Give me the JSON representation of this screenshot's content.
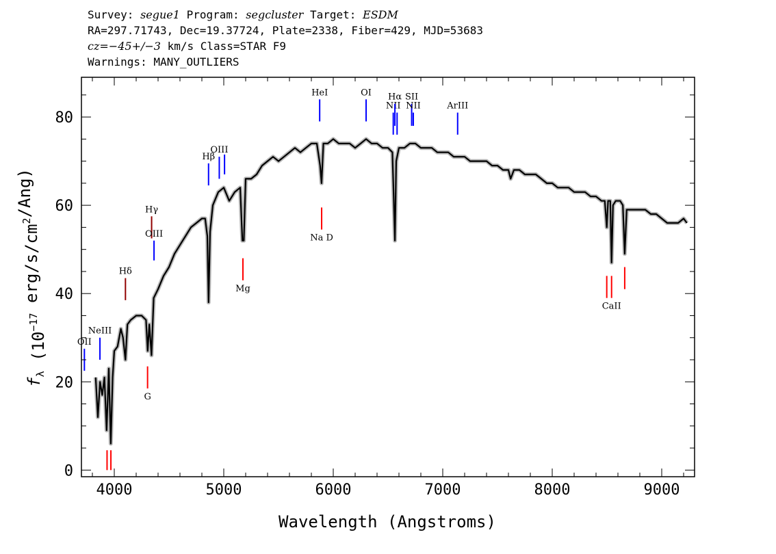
{
  "header": {
    "line1": {
      "survey_label": "Survey: ",
      "survey": "segue1",
      "program_label": " Program: ",
      "program": "segcluster",
      "target_label": " Target: ",
      "target": "ESDM"
    },
    "line2": "RA=297.71743, Dec=19.37724, Plate=2338, Fiber=429, MJD=53683",
    "line3": {
      "cz": "cz=−45+/−3",
      "rest": " km/s Class=STAR F9"
    },
    "line4": "Warnings: MANY_OUTLIERS"
  },
  "chart_data": {
    "type": "line",
    "title": "",
    "xlabel": "Wavelength (Angstroms)",
    "ylabel": "fλ (10⁻¹⁷ erg/s/cm²/Ang)",
    "xlim": [
      3700,
      9300
    ],
    "ylim": [
      -1.5,
      89
    ],
    "xticks": [
      4000,
      5000,
      6000,
      7000,
      8000,
      9000
    ],
    "yticks": [
      0,
      20,
      40,
      60,
      80
    ],
    "grid": false,
    "series": [
      {
        "color": "#000000",
        "points": [
          [
            3830,
            21
          ],
          [
            3850,
            12
          ],
          [
            3870,
            20
          ],
          [
            3890,
            17
          ],
          [
            3910,
            21
          ],
          [
            3930,
            9
          ],
          [
            3950,
            23
          ],
          [
            3968,
            6
          ],
          [
            3985,
            21
          ],
          [
            4000,
            27
          ],
          [
            4030,
            28
          ],
          [
            4060,
            32
          ],
          [
            4080,
            30
          ],
          [
            4102,
            25
          ],
          [
            4120,
            33
          ],
          [
            4150,
            34
          ],
          [
            4200,
            35
          ],
          [
            4250,
            35
          ],
          [
            4290,
            34
          ],
          [
            4305,
            27
          ],
          [
            4320,
            33
          ],
          [
            4340,
            26
          ],
          [
            4360,
            39
          ],
          [
            4400,
            41
          ],
          [
            4450,
            44
          ],
          [
            4500,
            46
          ],
          [
            4550,
            49
          ],
          [
            4600,
            51
          ],
          [
            4650,
            53
          ],
          [
            4700,
            55
          ],
          [
            4750,
            56
          ],
          [
            4800,
            57
          ],
          [
            4830,
            57
          ],
          [
            4850,
            53
          ],
          [
            4861,
            38
          ],
          [
            4875,
            54
          ],
          [
            4900,
            60
          ],
          [
            4950,
            63
          ],
          [
            5000,
            64
          ],
          [
            5050,
            61
          ],
          [
            5100,
            63
          ],
          [
            5150,
            64
          ],
          [
            5170,
            52
          ],
          [
            5183,
            52
          ],
          [
            5200,
            66
          ],
          [
            5250,
            66
          ],
          [
            5300,
            67
          ],
          [
            5350,
            69
          ],
          [
            5400,
            70
          ],
          [
            5450,
            71
          ],
          [
            5500,
            70
          ],
          [
            5550,
            71
          ],
          [
            5600,
            72
          ],
          [
            5650,
            73
          ],
          [
            5700,
            72
          ],
          [
            5750,
            73
          ],
          [
            5800,
            74
          ],
          [
            5850,
            74
          ],
          [
            5880,
            69
          ],
          [
            5893,
            65
          ],
          [
            5910,
            74
          ],
          [
            5950,
            74
          ],
          [
            6000,
            75
          ],
          [
            6050,
            74
          ],
          [
            6100,
            74
          ],
          [
            6150,
            74
          ],
          [
            6200,
            73
          ],
          [
            6250,
            74
          ],
          [
            6300,
            75
          ],
          [
            6350,
            74
          ],
          [
            6400,
            74
          ],
          [
            6450,
            73
          ],
          [
            6500,
            73
          ],
          [
            6540,
            72
          ],
          [
            6552,
            62
          ],
          [
            6563,
            52
          ],
          [
            6575,
            70
          ],
          [
            6600,
            73
          ],
          [
            6650,
            73
          ],
          [
            6700,
            74
          ],
          [
            6750,
            74
          ],
          [
            6800,
            73
          ],
          [
            6850,
            73
          ],
          [
            6900,
            73
          ],
          [
            6950,
            72
          ],
          [
            7000,
            72
          ],
          [
            7050,
            72
          ],
          [
            7100,
            71
          ],
          [
            7150,
            71
          ],
          [
            7200,
            71
          ],
          [
            7250,
            70
          ],
          [
            7300,
            70
          ],
          [
            7350,
            70
          ],
          [
            7400,
            70
          ],
          [
            7450,
            69
          ],
          [
            7500,
            69
          ],
          [
            7550,
            68
          ],
          [
            7600,
            68
          ],
          [
            7620,
            66
          ],
          [
            7650,
            68
          ],
          [
            7700,
            68
          ],
          [
            7750,
            67
          ],
          [
            7800,
            67
          ],
          [
            7850,
            67
          ],
          [
            7900,
            66
          ],
          [
            7950,
            65
          ],
          [
            8000,
            65
          ],
          [
            8050,
            64
          ],
          [
            8100,
            64
          ],
          [
            8150,
            64
          ],
          [
            8200,
            63
          ],
          [
            8250,
            63
          ],
          [
            8300,
            63
          ],
          [
            8350,
            62
          ],
          [
            8400,
            62
          ],
          [
            8450,
            61
          ],
          [
            8480,
            61
          ],
          [
            8498,
            55
          ],
          [
            8510,
            61
          ],
          [
            8530,
            61
          ],
          [
            8542,
            47
          ],
          [
            8555,
            60
          ],
          [
            8580,
            61
          ],
          [
            8620,
            61
          ],
          [
            8645,
            60
          ],
          [
            8662,
            49
          ],
          [
            8680,
            59
          ],
          [
            8720,
            59
          ],
          [
            8760,
            59
          ],
          [
            8800,
            59
          ],
          [
            8850,
            59
          ],
          [
            8900,
            58
          ],
          [
            8950,
            58
          ],
          [
            9000,
            57
          ],
          [
            9050,
            56
          ],
          [
            9100,
            56
          ],
          [
            9150,
            56
          ],
          [
            9200,
            57
          ],
          [
            9230,
            56
          ]
        ]
      }
    ],
    "emission_lines": [
      {
        "name": "OII",
        "wavelength": 3727,
        "color": "#0000ff",
        "y_bottom": 22.5,
        "y_top": 27.5
      },
      {
        "name": "NeIII",
        "wavelength": 3869,
        "color": "#0000ff",
        "y_bottom": 25,
        "y_top": 30
      },
      {
        "name": "Hδ",
        "wavelength": 4102,
        "color": "#900000",
        "y_bottom": 38.5,
        "y_top": 43.5
      },
      {
        "name": "Hγ",
        "wavelength": 4341,
        "color": "#900000",
        "y_bottom": 52.5,
        "y_top": 57.5
      },
      {
        "name": "OIII",
        "wavelength": 4363,
        "color": "#0000ff",
        "y_bottom": 47.5,
        "y_top": 52
      },
      {
        "name": "Hβ",
        "wavelength": 4861,
        "color": "#0000ff",
        "y_bottom": 64.5,
        "y_top": 69.5
      },
      {
        "name": "OIII",
        "wavelength": 4959,
        "color": "#0000ff",
        "y_bottom": 66,
        "y_top": 71
      },
      {
        "name": "OIII-b",
        "wavelength": 5007,
        "color": "#0000ff",
        "y_bottom": 67,
        "y_top": 71.5,
        "hide_label": true
      },
      {
        "name": "HeI",
        "wavelength": 5876,
        "color": "#0000ff",
        "y_bottom": 79,
        "y_top": 84
      },
      {
        "name": "OI",
        "wavelength": 6300,
        "color": "#0000ff",
        "y_bottom": 79,
        "y_top": 84
      },
      {
        "name": "NII",
        "wavelength": 6548,
        "color": "#0000ff",
        "y_bottom": 76,
        "y_top": 81
      },
      {
        "name": "Hα",
        "wavelength": 6563,
        "color": "#0000ff",
        "y_bottom": 78,
        "y_top": 83
      },
      {
        "name": "NII-b",
        "wavelength": 6583,
        "color": "#0000ff",
        "y_bottom": 76,
        "y_top": 81,
        "hide_label": true
      },
      {
        "name": "SII",
        "wavelength": 6716,
        "color": "#0000ff",
        "y_bottom": 78,
        "y_top": 83
      },
      {
        "name": "NII",
        "wavelength": 6731,
        "color": "#0000ff",
        "y_bottom": 78,
        "y_top": 81
      },
      {
        "name": "ArIII",
        "wavelength": 7136,
        "color": "#0000ff",
        "y_bottom": 76,
        "y_top": 81
      }
    ],
    "absorption_lines": [
      {
        "name": "",
        "wavelength": 3934,
        "color": "#ff0000",
        "y_bottom": 0,
        "y_top": 4.5
      },
      {
        "name": "",
        "wavelength": 3969,
        "color": "#ff0000",
        "y_bottom": 0,
        "y_top": 4.5
      },
      {
        "name": "G",
        "wavelength": 4304,
        "color": "#ff0000",
        "y_bottom": 18.5,
        "y_top": 23.5
      },
      {
        "name": "Mg",
        "wavelength": 5175,
        "color": "#ff0000",
        "y_bottom": 43,
        "y_top": 48
      },
      {
        "name": "Na  D",
        "wavelength": 5894,
        "color": "#ff0000",
        "y_bottom": 54.5,
        "y_top": 59.5
      },
      {
        "name": "",
        "wavelength": 8498,
        "color": "#ff0000",
        "y_bottom": 39,
        "y_top": 44
      },
      {
        "name": "CaII",
        "wavelength": 8542,
        "color": "#ff0000",
        "y_bottom": 39,
        "y_top": 44
      },
      {
        "name": "",
        "wavelength": 8662,
        "color": "#ff0000",
        "y_bottom": 41,
        "y_top": 46
      }
    ]
  }
}
